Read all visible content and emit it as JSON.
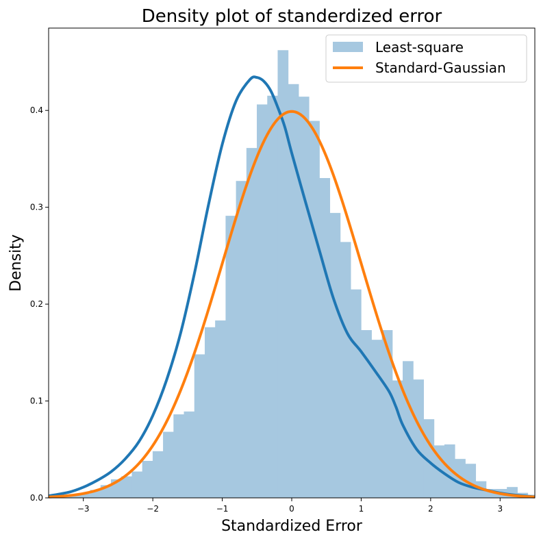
{
  "chart_data": {
    "type": "bar",
    "title": "Density plot of standerdized error",
    "xlabel": "Standardized Error",
    "ylabel": "Density",
    "xlim": [
      -3.5,
      3.5
    ],
    "ylim": [
      0,
      0.485
    ],
    "xticks": [
      -3,
      -2,
      -1,
      0,
      1,
      2,
      3
    ],
    "xtick_labels": [
      "−3",
      "−2",
      "−1",
      "0",
      "1",
      "2",
      "3"
    ],
    "yticks": [
      0.0,
      0.1,
      0.2,
      0.3,
      0.4
    ],
    "ytick_labels": [
      "0.0",
      "0.1",
      "0.2",
      "0.3",
      "0.4"
    ],
    "grid": false,
    "legend_position": "top-right",
    "series": [
      {
        "name": "Least-square",
        "kind": "histogram",
        "color": "#a6c8e0",
        "bin_start": -3.5,
        "bin_width": 0.15,
        "values": [
          0.001,
          0.002,
          0.003,
          0.004,
          0.008,
          0.013,
          0.019,
          0.022,
          0.027,
          0.038,
          0.048,
          0.068,
          0.086,
          0.089,
          0.148,
          0.176,
          0.183,
          0.291,
          0.327,
          0.361,
          0.406,
          0.415,
          0.462,
          0.427,
          0.414,
          0.389,
          0.33,
          0.294,
          0.264,
          0.215,
          0.173,
          0.163,
          0.173,
          0.121,
          0.141,
          0.122,
          0.081,
          0.054,
          0.055,
          0.04,
          0.035,
          0.017,
          0.009,
          0.009,
          0.011,
          0.005,
          0.003
        ]
      },
      {
        "name": "",
        "kind": "kde",
        "color": "#1f77b4",
        "x": [
          -3.5,
          -3.2,
          -3.0,
          -2.8,
          -2.6,
          -2.4,
          -2.2,
          -2.0,
          -1.8,
          -1.6,
          -1.4,
          -1.2,
          -1.0,
          -0.8,
          -0.6,
          -0.5,
          -0.4,
          -0.3,
          -0.2,
          -0.1,
          0.0,
          0.2,
          0.4,
          0.6,
          0.8,
          1.0,
          1.2,
          1.4,
          1.5,
          1.6,
          1.8,
          2.0,
          2.2,
          2.4,
          2.6,
          2.8,
          3.0,
          3.2,
          3.5
        ],
        "y": [
          0.002,
          0.006,
          0.011,
          0.018,
          0.027,
          0.04,
          0.058,
          0.085,
          0.122,
          0.17,
          0.232,
          0.302,
          0.365,
          0.41,
          0.432,
          0.434,
          0.43,
          0.42,
          0.403,
          0.383,
          0.356,
          0.305,
          0.255,
          0.206,
          0.17,
          0.151,
          0.131,
          0.11,
          0.094,
          0.075,
          0.05,
          0.036,
          0.025,
          0.016,
          0.011,
          0.008,
          0.005,
          0.003,
          0.001
        ]
      },
      {
        "name": "Standard-Gaussian",
        "kind": "line",
        "color": "#ff7f0e",
        "function": "standard-normal-pdf"
      }
    ]
  }
}
